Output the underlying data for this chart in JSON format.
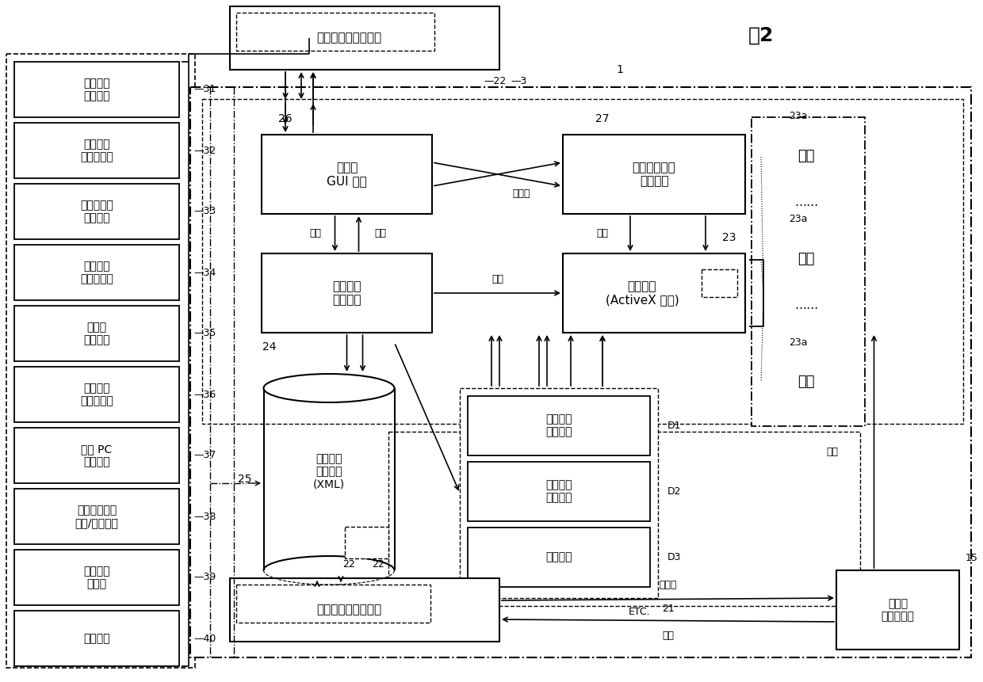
{
  "fig_label": "图2",
  "left_items": [
    {
      "text": "工作流程\n编辑功能",
      "num": "31"
    },
    {
      "text": "工作流程\n观察器功能",
      "num": "32"
    },
    {
      "text": "自定义活动\n注册功能",
      "num": "33"
    },
    {
      "text": "检查时间\n模拟器功能",
      "num": "34"
    },
    {
      "text": "保险点\n计算功能",
      "num": "35"
    },
    {
      "text": "检查状态\n监视器功能",
      "num": "36"
    },
    {
      "text": "外部 PC\n编辑功能",
      "num": "37"
    },
    {
      "text": "工作流程数据\n导出/导入功能",
      "num": "38"
    },
    {
      "text": "数据同步\n化功能",
      "num": "39"
    },
    {
      "text": "向导功能",
      "num": "40"
    }
  ],
  "top_editor": {
    "text": "可视工作流程编辑器",
    "n1": "22",
    "n2": "3"
  },
  "bottom_editor": {
    "text": "可视工作流程编辑器",
    "num": "22"
  },
  "gui_box": {
    "text": "系统的\nGUI 部分",
    "num": "26"
  },
  "engine_box": {
    "text": "工作流程\n引擎模块",
    "num": "24"
  },
  "wf_select": {
    "text": "工作流程选择\n菜单部分",
    "num": "27"
  },
  "activity_box": {
    "text": "活动部分\n(ActiveX 控制)",
    "num": "23"
  },
  "file_box": {
    "text": "工作流程\n文件部分\n(XML)",
    "num": "25"
  },
  "data_boxes": [
    {
      "text": "工作流程\n协议数据",
      "num": "D1"
    },
    {
      "text": "工作流程\n模板数据",
      "num": "D2"
    },
    {
      "text": "状态数据",
      "num": "D3"
    }
  ],
  "etc_label": "ETC.",
  "right_activities": [
    {
      "text": "活动",
      "num": "23a"
    },
    {
      "text": "活动",
      "num": "23a"
    },
    {
      "text": "活动",
      "num": "23a"
    }
  ],
  "uc_box": {
    "text": "超声波\n系统控制器",
    "num": "15"
  },
  "labels": {
    "control": "控制",
    "state": "状态",
    "source_info": "源信息",
    "sync": "同步化",
    "n21": "21",
    "n1": "1"
  }
}
